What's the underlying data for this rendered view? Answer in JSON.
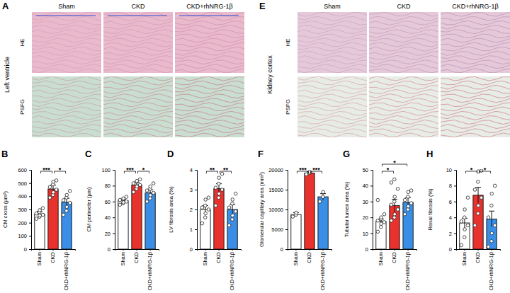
{
  "image_panels": [
    {
      "letter": "A",
      "tissue": "Left ventricle",
      "columns": [
        "Sham",
        "CKD",
        "CKD+rhNRG-1β"
      ],
      "rows": [
        "HE",
        "PSFG"
      ]
    },
    {
      "letter": "E",
      "tissue": "Kidney cortex",
      "columns": [
        "Sham",
        "CKD",
        "CKD+rhNRG-1β"
      ],
      "rows": [
        "HE",
        "PSFG"
      ]
    }
  ],
  "chart_data": [
    {
      "type": "bar",
      "title": "B",
      "y_label": "CM cross (µm²)",
      "categories": [
        "Sham",
        "CKD",
        "CKD+rhNRG-1β"
      ],
      "values": [
        265,
        455,
        355
      ],
      "errors": [
        20,
        30,
        30
      ],
      "points": [
        [
          230,
          245,
          255,
          260,
          270,
          280,
          295,
          310
        ],
        [
          390,
          410,
          430,
          450,
          470,
          490,
          510,
          520
        ],
        [
          260,
          290,
          320,
          350,
          370,
          390,
          410,
          440
        ]
      ],
      "colors": [
        "#ffffff",
        "#e8322e",
        "#3a8ee6"
      ],
      "ylim": [
        0,
        600
      ],
      "yticks": [
        0,
        100,
        200,
        300,
        400,
        500,
        600
      ],
      "comparisons": [
        {
          "groups": [
            "Sham",
            "CKD"
          ],
          "label": "***"
        },
        {
          "groups": [
            "CKD",
            "CKD+rhNRG-1β"
          ],
          "label": "*"
        }
      ]
    },
    {
      "type": "bar",
      "title": "C",
      "y_label": "CM perimeter (µm)",
      "categories": [
        "Sham",
        "CKD",
        "CKD+rhNRG-1β"
      ],
      "values": [
        61,
        81,
        71
      ],
      "errors": [
        2,
        3,
        4
      ],
      "points": [
        [
          56,
          58,
          59,
          60,
          62,
          63,
          64,
          66
        ],
        [
          72,
          76,
          79,
          81,
          83,
          85,
          86,
          88
        ],
        [
          60,
          64,
          68,
          71,
          74,
          76,
          79,
          83
        ]
      ],
      "colors": [
        "#ffffff",
        "#e8322e",
        "#3a8ee6"
      ],
      "ylim": [
        0,
        100
      ],
      "yticks": [
        0,
        20,
        40,
        60,
        80,
        100
      ],
      "comparisons": [
        {
          "groups": [
            "Sham",
            "CKD"
          ],
          "label": "***"
        },
        {
          "groups": [
            "CKD",
            "CKD+rhNRG-1β"
          ],
          "label": "*"
        }
      ]
    },
    {
      "type": "bar",
      "title": "D",
      "y_label": "LV fibrosis area (%)",
      "categories": [
        "Sham",
        "CKD",
        "CKD+rhNRG-1β"
      ],
      "values": [
        2.0,
        3.05,
        2.0
      ],
      "errors": [
        0.2,
        0.25,
        0.25
      ],
      "points": [
        [
          1.3,
          1.6,
          1.8,
          2.0,
          2.1,
          2.2,
          2.5,
          2.6
        ],
        [
          2.2,
          2.6,
          2.8,
          3.0,
          3.1,
          3.3,
          3.6,
          3.8
        ],
        [
          1.2,
          1.5,
          1.7,
          1.9,
          2.1,
          2.3,
          2.5,
          2.8
        ]
      ],
      "colors": [
        "#ffffff",
        "#e8322e",
        "#3a8ee6"
      ],
      "ylim": [
        0,
        4
      ],
      "yticks": [
        0,
        1,
        2,
        3,
        4
      ],
      "comparisons": [
        {
          "groups": [
            "Sham",
            "CKD"
          ],
          "label": "**"
        },
        {
          "groups": [
            "CKD",
            "CKD+rhNRG-1β"
          ],
          "label": "**"
        }
      ]
    },
    {
      "type": "bar",
      "title": "F",
      "y_label": "Glomerular capillary area (mm²)",
      "categories": [
        "Sham",
        "CKD",
        "CKD+rhNRG-1β"
      ],
      "values": [
        8700,
        19200,
        13200
      ],
      "errors": [
        500,
        300,
        800
      ],
      "points": [
        [
          8200,
          8700,
          9200
        ],
        [
          18900,
          19200,
          19500
        ],
        [
          12000,
          13200,
          14400
        ]
      ],
      "colors": [
        "#ffffff",
        "#e8322e",
        "#3a8ee6"
      ],
      "ylim": [
        0,
        20000
      ],
      "yticks": [
        0,
        5000,
        10000,
        15000,
        20000
      ],
      "comparisons": [
        {
          "groups": [
            "Sham",
            "CKD"
          ],
          "label": "***"
        },
        {
          "groups": [
            "CKD",
            "CKD+rhNRG-1β"
          ],
          "label": "***"
        }
      ]
    },
    {
      "type": "bar",
      "title": "G",
      "y_label": "Tubular lumen area (%)",
      "categories": [
        "Sham",
        "CKD",
        "CKD+rhNRG-1β"
      ],
      "values": [
        17.5,
        27.5,
        29.5
      ],
      "errors": [
        1.5,
        4,
        3
      ],
      "points": [
        [
          11,
          14,
          16,
          17,
          18,
          19,
          20,
          22,
          31
        ],
        [
          18,
          20,
          22,
          25,
          28,
          30,
          33,
          38,
          42,
          44
        ],
        [
          22,
          25,
          27,
          29,
          31,
          33,
          36,
          37
        ]
      ],
      "colors": [
        "#ffffff",
        "#e8322e",
        "#3a8ee6"
      ],
      "ylim": [
        0,
        50
      ],
      "yticks": [
        0,
        10,
        20,
        30,
        40,
        50
      ],
      "comparisons": [
        {
          "groups": [
            "Sham",
            "CKD"
          ],
          "label": "*"
        },
        {
          "groups": [
            "Sham",
            "CKD+rhNRG-1β"
          ],
          "label": "*"
        }
      ]
    },
    {
      "type": "bar",
      "title": "H",
      "y_label": "Renal fibrosis (%)",
      "categories": [
        "Sham",
        "CKD",
        "CKD+rhNRG-1β"
      ],
      "values": [
        3.3,
        6.8,
        3.8
      ],
      "errors": [
        0.6,
        1.0,
        1.0
      ],
      "points": [
        [
          0.5,
          1.5,
          2.5,
          3,
          3.5,
          4,
          5,
          6.5
        ],
        [
          3,
          4.5,
          5.5,
          6.5,
          7.5,
          8.5,
          9.8,
          9.9
        ],
        [
          0.3,
          1,
          2,
          3,
          4,
          5.5,
          7,
          8
        ]
      ],
      "colors": [
        "#ffffff",
        "#e8322e",
        "#3a8ee6"
      ],
      "ylim": [
        0,
        10
      ],
      "yticks": [
        0,
        2,
        4,
        6,
        8,
        10
      ],
      "comparisons": [
        {
          "groups": [
            "Sham",
            "CKD"
          ],
          "label": "*"
        },
        {
          "groups": [
            "CKD",
            "CKD+rhNRG-1β"
          ],
          "label": "*"
        }
      ]
    }
  ]
}
